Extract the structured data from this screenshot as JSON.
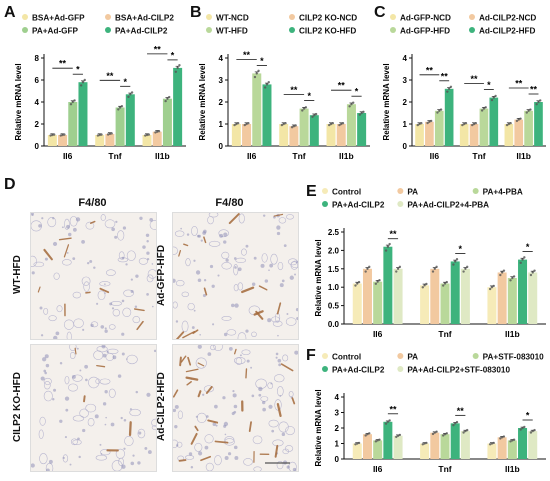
{
  "colors": {
    "BSA_GFP": "#f3e6a6",
    "BSA_CILP2": "#f2c9a0",
    "PA_GFP": "#9fcf8f",
    "PA_CILP2": "#3db37d",
    "WT_NCD": "#f3e6a6",
    "CILP2_NCD": "#f2c9a0",
    "WT_HFD": "#b9d89a",
    "CILP2_HFD": "#3db37d",
    "Ctrl": "#f6ebb8",
    "PA": "#f2c9a0",
    "PA_inhib": "#b9d89a",
    "PA_CILP2_inhib": "#dfe9c4",
    "stain": "#a4693a"
  },
  "panels": {
    "A": "A",
    "B": "B",
    "C": "C",
    "D": "D",
    "E": "E",
    "F": "F"
  },
  "histology": {
    "col1": "F4/80",
    "col2": "F4/80",
    "rows": [
      "WT-HFD",
      "CILP2 KO-HFD"
    ],
    "rows2": [
      "Ad-GFP-HFD",
      "Ad-CILP2-HFD"
    ]
  },
  "chart_data": [
    {
      "id": "A",
      "type": "bar",
      "categories": [
        "Il6",
        "Tnf",
        "Il1b"
      ],
      "ylabel": "Relative mRNA level",
      "ylim": [
        0,
        8
      ],
      "yticks": [
        0,
        2,
        4,
        6,
        8
      ],
      "series": [
        {
          "name": "BSA+Ad-GFP",
          "values": [
            1.0,
            1.0,
            1.0
          ]
        },
        {
          "name": "BSA+Ad-CILP2",
          "values": [
            1.0,
            1.1,
            1.3
          ]
        },
        {
          "name": "PA+Ad-GFP",
          "values": [
            4.0,
            3.5,
            4.3
          ]
        },
        {
          "name": "PA+Ad-CILP2",
          "values": [
            5.8,
            4.7,
            7.1
          ]
        }
      ],
      "legend_cols": 2,
      "sig": [
        {
          "cat": 0,
          "from": 0,
          "to": 2,
          "label": "**"
        },
        {
          "cat": 0,
          "from": 2,
          "to": 3,
          "label": "*"
        },
        {
          "cat": 1,
          "from": 0,
          "to": 2,
          "label": "**"
        },
        {
          "cat": 1,
          "from": 2,
          "to": 3,
          "label": "*"
        },
        {
          "cat": 2,
          "from": 0,
          "to": 2,
          "label": "**"
        },
        {
          "cat": 2,
          "from": 2,
          "to": 3,
          "label": "*"
        }
      ]
    },
    {
      "id": "B",
      "type": "bar",
      "categories": [
        "Il6",
        "Tnf",
        "Il1b"
      ],
      "ylabel": "Relative mRNA level",
      "ylim": [
        0,
        4
      ],
      "yticks": [
        0,
        1,
        2,
        3,
        4
      ],
      "series": [
        {
          "name": "WT-NCD",
          "values": [
            1.0,
            1.0,
            1.0
          ]
        },
        {
          "name": "CILP2 KO-NCD",
          "values": [
            1.0,
            0.9,
            1.0
          ]
        },
        {
          "name": "WT-HFD",
          "values": [
            3.3,
            1.7,
            1.9
          ]
        },
        {
          "name": "CILP2 KO-HFD",
          "values": [
            2.8,
            1.4,
            1.5
          ]
        }
      ],
      "legend_cols": 2,
      "sig": [
        {
          "cat": 0,
          "from": 0,
          "to": 2,
          "label": "**"
        },
        {
          "cat": 0,
          "from": 2,
          "to": 3,
          "label": "*"
        },
        {
          "cat": 1,
          "from": 0,
          "to": 2,
          "label": "**"
        },
        {
          "cat": 1,
          "from": 2,
          "to": 3,
          "label": "*"
        },
        {
          "cat": 2,
          "from": 0,
          "to": 2,
          "label": "**"
        },
        {
          "cat": 2,
          "from": 2,
          "to": 3,
          "label": "*"
        }
      ]
    },
    {
      "id": "C",
      "type": "bar",
      "categories": [
        "Il6",
        "Tnf",
        "Il1b"
      ],
      "ylabel": "Relative mRNA level",
      "ylim": [
        0,
        4
      ],
      "yticks": [
        0,
        1,
        2,
        3,
        4
      ],
      "series": [
        {
          "name": "Ad-GFP-NCD",
          "values": [
            1.0,
            1.0,
            1.0
          ]
        },
        {
          "name": "Ad-CILP2-NCD",
          "values": [
            1.1,
            1.0,
            1.2
          ]
        },
        {
          "name": "Ad-GFP-HFD",
          "values": [
            1.6,
            1.7,
            1.6
          ]
        },
        {
          "name": "Ad-CILP2-HFD",
          "values": [
            2.6,
            2.2,
            2.0
          ]
        }
      ],
      "legend_cols": 2,
      "sig": [
        {
          "cat": 0,
          "from": 0,
          "to": 2,
          "label": "**"
        },
        {
          "cat": 0,
          "from": 2,
          "to": 3,
          "label": "**"
        },
        {
          "cat": 1,
          "from": 0,
          "to": 2,
          "label": "**"
        },
        {
          "cat": 1,
          "from": 2,
          "to": 3,
          "label": "*"
        },
        {
          "cat": 2,
          "from": 0,
          "to": 2,
          "label": "**"
        },
        {
          "cat": 2,
          "from": 2,
          "to": 3,
          "label": "**"
        }
      ]
    },
    {
      "id": "E",
      "type": "bar",
      "categories": [
        "Il6",
        "Tnf",
        "Il1b"
      ],
      "ylabel": "Relative mRNA level",
      "ylim": [
        0,
        2.5
      ],
      "yticks": [
        0.0,
        0.5,
        1.0,
        1.5,
        2.0,
        2.5
      ],
      "series": [
        {
          "name": "Control",
          "values": [
            1.1,
            1.05,
            1.0
          ]
        },
        {
          "name": "PA",
          "values": [
            1.5,
            1.5,
            1.4
          ]
        },
        {
          "name": "PA+4-PBA",
          "values": [
            1.15,
            1.1,
            1.25
          ]
        },
        {
          "name": "PA+Ad-CILP2",
          "values": [
            2.1,
            1.7,
            1.75
          ]
        },
        {
          "name": "PA+Ad-CILP2+4-PBA",
          "values": [
            1.5,
            1.5,
            1.4
          ]
        }
      ],
      "legend_cols": 3,
      "sig": [
        {
          "cat": 0,
          "from": 3,
          "to": 4,
          "label": "**"
        },
        {
          "cat": 1,
          "from": 3,
          "to": 4,
          "label": "*"
        },
        {
          "cat": 2,
          "from": 3,
          "to": 4,
          "label": "*"
        }
      ]
    },
    {
      "id": "F",
      "type": "bar",
      "categories": [
        "Il6",
        "Tnf",
        "Il1b"
      ],
      "ylabel": "Relative mRNA level",
      "ylim": [
        0,
        4
      ],
      "yticks": [
        0,
        1,
        2,
        3,
        4
      ],
      "series": [
        {
          "name": "Control",
          "values": [
            1.0,
            1.0,
            1.0
          ]
        },
        {
          "name": "PA",
          "values": [
            1.6,
            1.7,
            1.4
          ]
        },
        {
          "name": "PA+STF-083010",
          "values": [
            1.2,
            1.6,
            1.2
          ]
        },
        {
          "name": "PA+Ad-CILP2",
          "values": [
            2.4,
            2.3,
            2.0
          ]
        },
        {
          "name": "PA+Ad-CILP2+STF-083010",
          "values": [
            1.5,
            1.8,
            1.8
          ]
        }
      ],
      "legend_cols": 3,
      "sig": [
        {
          "cat": 0,
          "from": 3,
          "to": 4,
          "label": "**"
        },
        {
          "cat": 1,
          "from": 3,
          "to": 4,
          "label": "**"
        },
        {
          "cat": 2,
          "from": 3,
          "to": 4,
          "label": "*"
        }
      ]
    }
  ]
}
